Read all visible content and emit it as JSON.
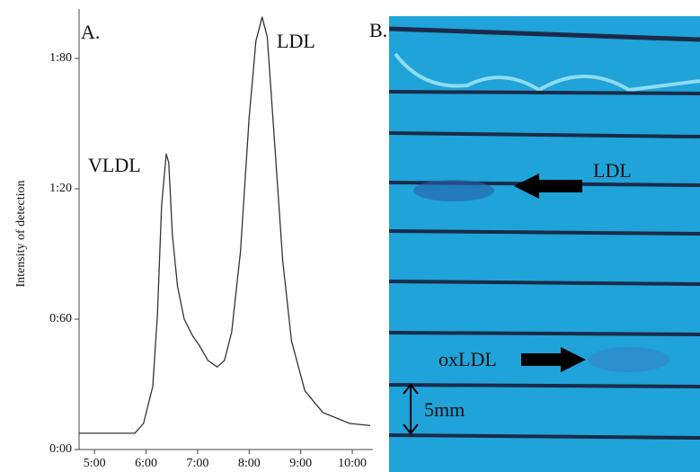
{
  "chart_data": {
    "type": "line",
    "y_label": "Intensity of detection",
    "annotations": {
      "panel": "A.",
      "first_peak": "VLDL",
      "second_peak": "LDL"
    },
    "x": [
      4.7,
      5.78,
      5.95,
      6.13,
      6.22,
      6.3,
      6.39,
      6.44,
      6.51,
      6.61,
      6.74,
      6.91,
      7.03,
      7.2,
      7.38,
      7.52,
      7.66,
      7.83,
      8.0,
      8.13,
      8.25,
      8.35,
      8.47,
      8.65,
      8.82,
      9.08,
      9.43,
      9.95,
      10.35
    ],
    "values": [
      0.075,
      0.075,
      0.12,
      0.29,
      0.62,
      1.12,
      1.36,
      1.32,
      0.99,
      0.75,
      0.6,
      0.52,
      0.48,
      0.41,
      0.38,
      0.41,
      0.54,
      0.91,
      1.53,
      1.88,
      1.99,
      1.9,
      1.49,
      0.87,
      0.5,
      0.27,
      0.17,
      0.12,
      0.11
    ],
    "color": "#333333",
    "xlim": [
      4.7,
      10.4
    ],
    "ylim": [
      0,
      2.0
    ],
    "xticks": [
      {
        "value": 5,
        "label": "5:00"
      },
      {
        "value": 6,
        "label": "6:00"
      },
      {
        "value": 7,
        "label": "7:00"
      },
      {
        "value": 8,
        "label": "8:00"
      },
      {
        "value": 9,
        "label": "9:00"
      },
      {
        "value": 10,
        "label": "10:00"
      }
    ],
    "yticks": [
      {
        "value": 0,
        "label": "0:00"
      },
      {
        "value": 0.6,
        "label": "0:60"
      },
      {
        "value": 1.2,
        "label": "1:20"
      },
      {
        "value": 1.8,
        "label": "1:80"
      }
    ]
  },
  "panel_b": {
    "label": "B.",
    "upper_arrow": "LDL",
    "lower_arrow": "oxLDL",
    "scale": "5mm"
  }
}
